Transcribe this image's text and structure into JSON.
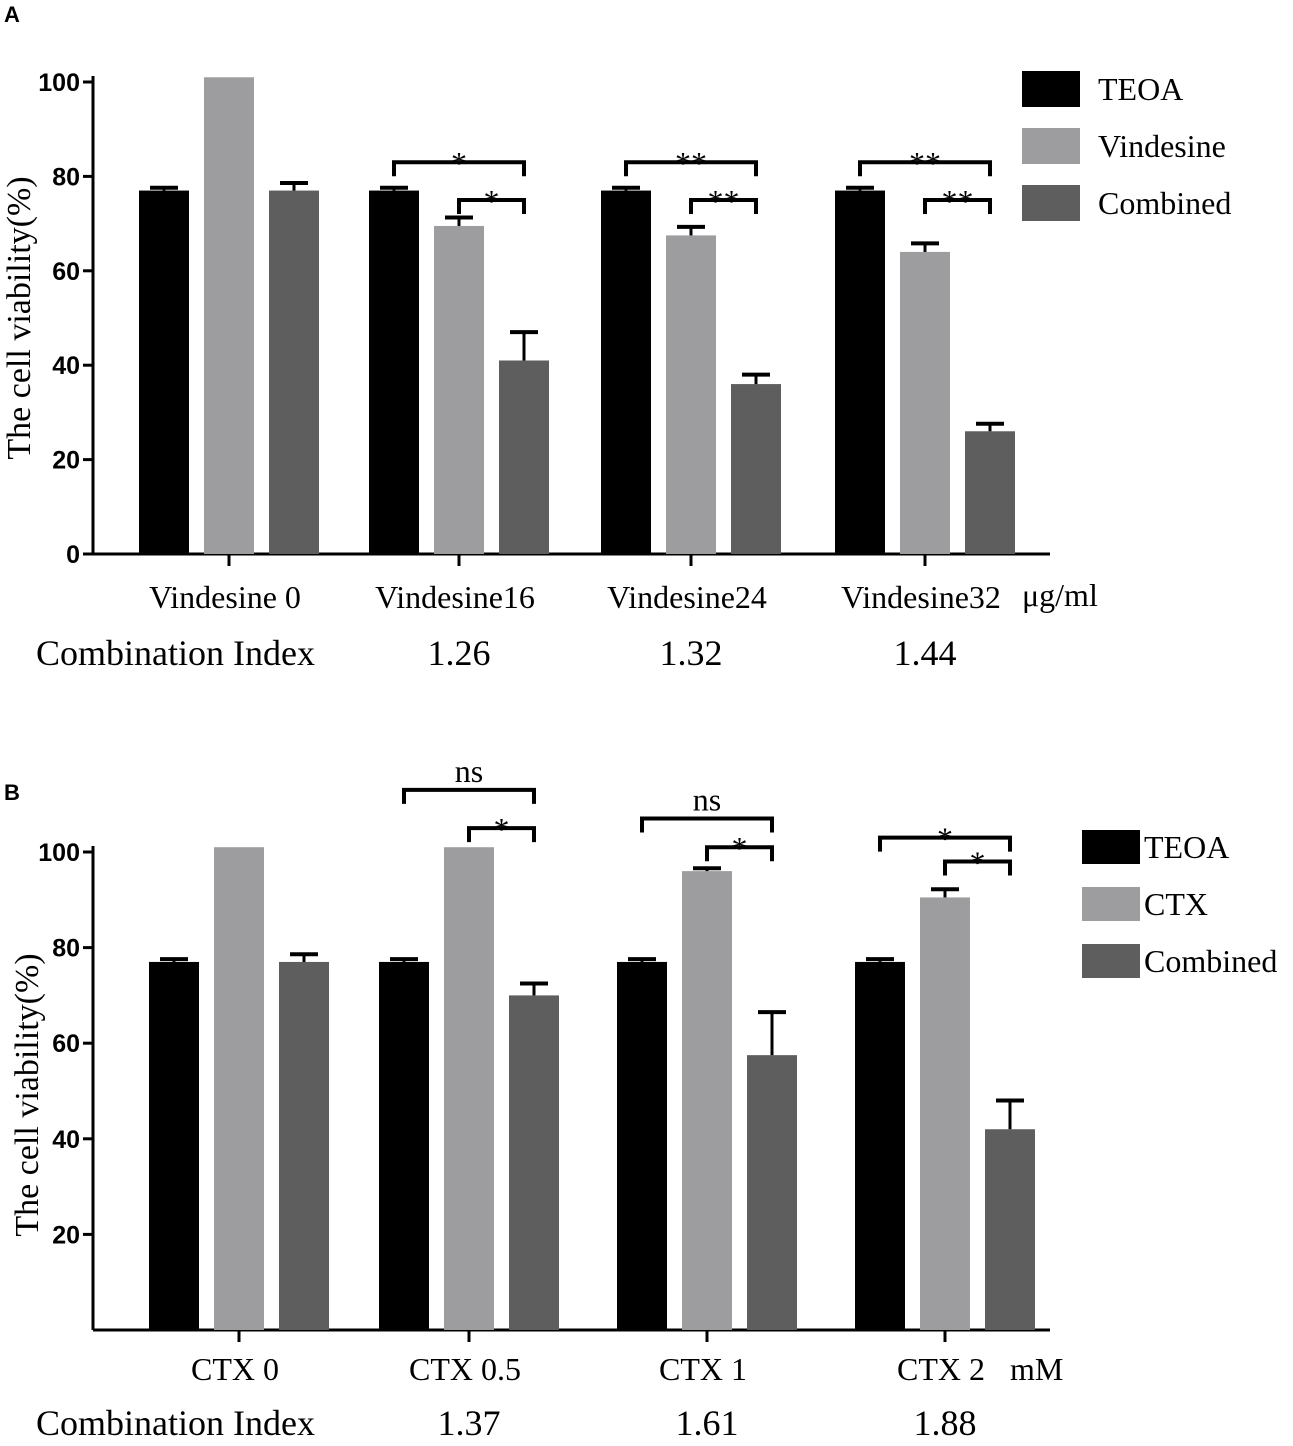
{
  "colors": {
    "TEOA": "#000000",
    "drug": "#9d9d9f",
    "Combined": "#5e5e5e",
    "axis": "#000000"
  },
  "chart_data": [
    {
      "panel": "A",
      "type": "bar",
      "ylabel": "The cell viability(%)",
      "ylim": [
        0,
        100
      ],
      "yticks": [
        0,
        20,
        40,
        60,
        80,
        100
      ],
      "categories": [
        "Vindesine 0",
        "Vindesine16",
        "Vindesine24",
        "Vindesine32"
      ],
      "unit": "μg/ml",
      "series": [
        {
          "name": "TEOA",
          "values": [
            77,
            77,
            77,
            77
          ],
          "errors": [
            0.6,
            0.6,
            0.6,
            0.6
          ]
        },
        {
          "name": "Vindesine",
          "values": [
            101,
            69.5,
            67.5,
            64
          ],
          "errors": [
            0,
            1.8,
            1.8,
            1.8
          ]
        },
        {
          "name": "Combined",
          "values": [
            77,
            41,
            36,
            26
          ],
          "errors": [
            1.6,
            6,
            2,
            1.6
          ]
        }
      ],
      "legend": [
        "TEOA",
        "Vindesine",
        "Combined"
      ],
      "combination_index_label": "Combination Index",
      "combination_index": [
        "",
        "1.26",
        "1.32",
        "1.44"
      ],
      "significance": [
        {
          "group": 1,
          "from": 0,
          "to": 2,
          "label": "*",
          "level": 83
        },
        {
          "group": 1,
          "from": 1,
          "to": 2,
          "label": "*",
          "level": 75
        },
        {
          "group": 2,
          "from": 0,
          "to": 2,
          "label": "**",
          "level": 83
        },
        {
          "group": 2,
          "from": 1,
          "to": 2,
          "label": "**",
          "level": 75
        },
        {
          "group": 3,
          "from": 0,
          "to": 2,
          "label": "**",
          "level": 83
        },
        {
          "group": 3,
          "from": 1,
          "to": 2,
          "label": "**",
          "level": 75
        }
      ]
    },
    {
      "panel": "B",
      "type": "bar",
      "ylabel": "The cell viability(%)",
      "ylim": [
        0,
        100
      ],
      "yticks": [
        20,
        40,
        60,
        80,
        100
      ],
      "categories": [
        "CTX 0",
        "CTX 0.5",
        "CTX 1",
        "CTX 2"
      ],
      "unit": "mM",
      "series": [
        {
          "name": "TEOA",
          "values": [
            77,
            77,
            77,
            77
          ],
          "errors": [
            0.6,
            0.6,
            0.6,
            0.6
          ]
        },
        {
          "name": "CTX",
          "values": [
            101,
            101,
            96,
            90.5
          ],
          "errors": [
            0,
            0,
            0.6,
            1.7
          ]
        },
        {
          "name": "Combined",
          "values": [
            77,
            70,
            57.5,
            42
          ],
          "errors": [
            1.6,
            2.5,
            9,
            6
          ]
        }
      ],
      "legend": [
        "TEOA",
        "CTX",
        "Combined"
      ],
      "combination_index_label": "Combination Index",
      "combination_index": [
        "",
        "1.37",
        "1.61",
        "1.88"
      ],
      "significance": [
        {
          "group": 1,
          "from": 0,
          "to": 2,
          "label": "ns",
          "level": 113,
          "offset": 8
        },
        {
          "group": 1,
          "from": 1,
          "to": 2,
          "label": "*",
          "level": 105
        },
        {
          "group": 2,
          "from": 0,
          "to": 2,
          "label": "ns",
          "level": 107,
          "offset": 8
        },
        {
          "group": 2,
          "from": 1,
          "to": 2,
          "label": "*",
          "level": 101
        },
        {
          "group": 3,
          "from": 0,
          "to": 2,
          "label": "*",
          "level": 103
        },
        {
          "group": 3,
          "from": 1,
          "to": 2,
          "label": "*",
          "level": 98
        }
      ]
    }
  ]
}
